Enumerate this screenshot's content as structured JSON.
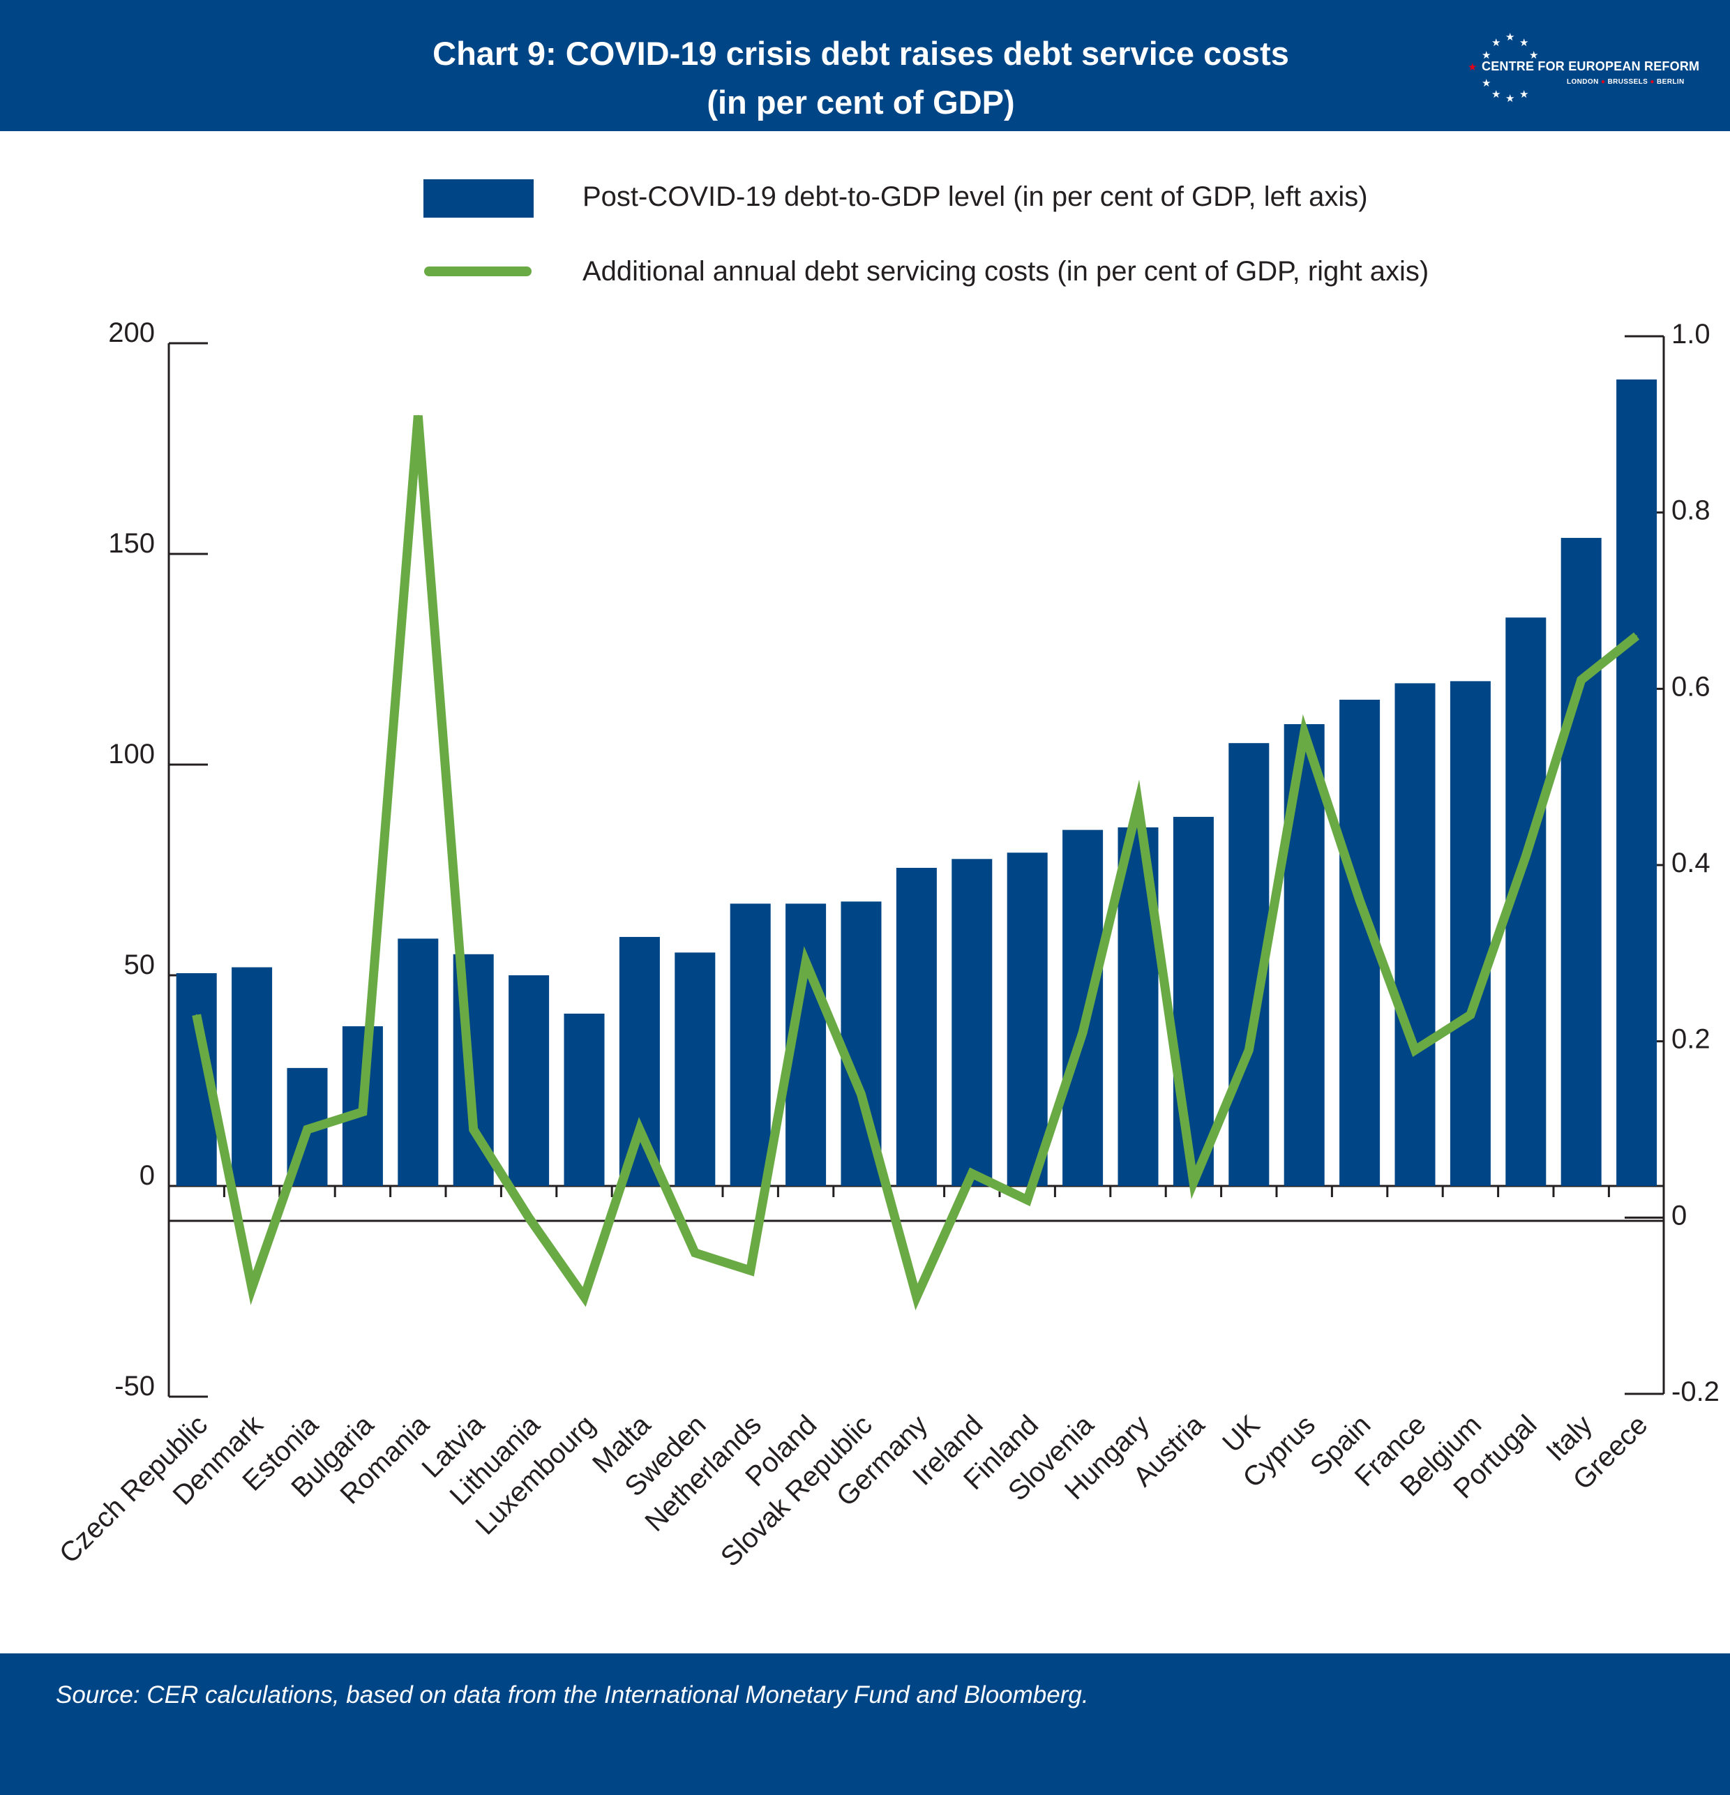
{
  "header": {
    "title_line1": "Chart 9: COVID-19 crisis debt raises debt service costs",
    "title_line2": "(in per cent of GDP)",
    "logo_name": "CENTRE FOR EUROPEAN REFORM",
    "logo_cities": [
      "LONDON",
      "BRUSSELS",
      "BERLIN"
    ]
  },
  "footer": {
    "source": "Source: CER calculations, based on data from the International Monetary Fund and Bloomberg."
  },
  "colors": {
    "header_bg": "#004586",
    "bar": "#004586",
    "line": "#6aaa45",
    "axis": "#231f20"
  },
  "chart_data": {
    "type": "bar",
    "categories": [
      "Czech Republic",
      "Denmark",
      "Estonia",
      "Bulgaria",
      "Romania",
      "Latvia",
      "Lithuania",
      "Luxembourg",
      "Malta",
      "Sweden",
      "Netherlands",
      "Poland",
      "Slovak Republic",
      "Germany",
      "Ireland",
      "Finland",
      "Slovenia",
      "Hungary",
      "Austria",
      "UK",
      "Cyprus",
      "Spain",
      "France",
      "Belgium",
      "Portugal",
      "Italy",
      "Greece"
    ],
    "series": [
      {
        "name": "Post-COVID-19 debt-to-GDP level (in per cent of GDP, left axis)",
        "type": "bar",
        "axis": "left",
        "values": [
          50.5,
          51.9,
          28,
          37.9,
          58.7,
          55,
          50,
          40.9,
          59.1,
          55.4,
          67,
          67,
          67.5,
          75.5,
          77.6,
          79.1,
          84.5,
          85.1,
          87.6,
          105.1,
          109.6,
          115.4,
          119.3,
          119.8,
          134.9,
          153.8,
          191.4
        ]
      },
      {
        "name": "Additional annual debt servicing costs (in per cent of GDP, right axis)",
        "type": "line",
        "axis": "right",
        "values": [
          0.23,
          -0.08,
          0.1,
          0.12,
          0.91,
          0.1,
          0.0,
          -0.09,
          0.1,
          -0.04,
          -0.06,
          0.29,
          0.14,
          -0.09,
          0.05,
          0.02,
          0.21,
          0.47,
          0.04,
          0.19,
          0.55,
          0.36,
          0.19,
          0.23,
          0.41,
          0.61,
          0.66
        ]
      }
    ],
    "y_left": {
      "ylim": [
        -50,
        200
      ],
      "ticks": [
        "200",
        "150",
        "100",
        "50",
        "0",
        "-50"
      ]
    },
    "y_right": {
      "ylim": [
        -0.2,
        1.0
      ],
      "ticks": [
        "1.0",
        "0.8",
        "0.6",
        "0.4",
        "0.2",
        "0",
        "-0.2"
      ]
    },
    "legend": "top",
    "grid": false
  }
}
